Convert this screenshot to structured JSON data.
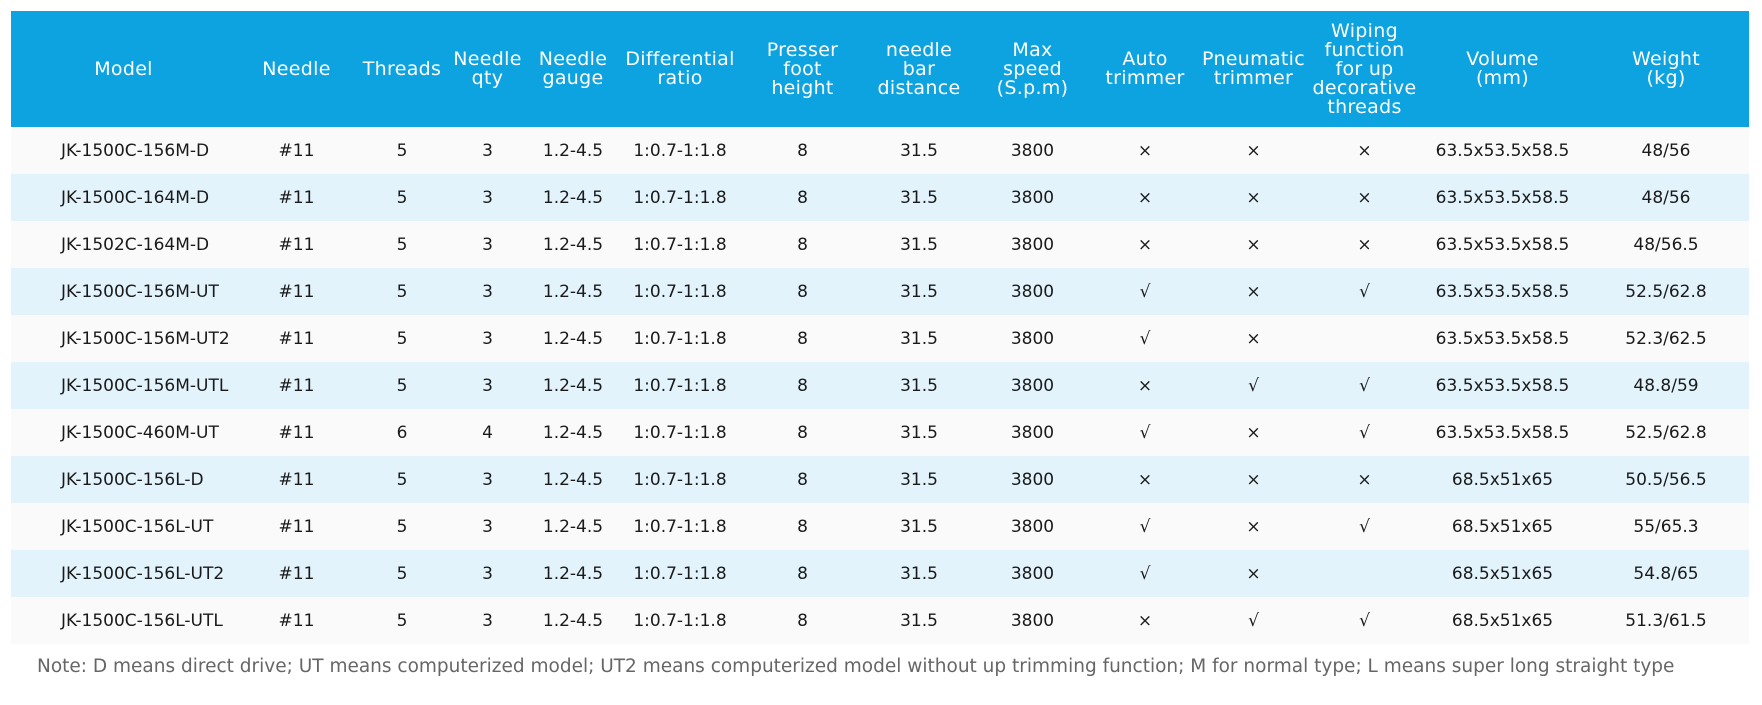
{
  "table": {
    "header": [
      "Model",
      "Needle",
      "Threads",
      "Needle\nqty",
      "Needle\ngauge",
      "Differential\nratio",
      "Presser\nfoot\nheight",
      "needle\nbar\ndistance",
      "Max\nspeed\n(S.p.m)",
      "Auto\ntrimmer",
      "Pneumatic\ntrimmer",
      "Wiping\nfunction\nfor up\ndecorative\nthreads",
      "Volume\n(mm)",
      "Weight\n(kg)"
    ],
    "rows": [
      [
        "JK-1500C-156M-D",
        "#11",
        "5",
        "3",
        "1.2-4.5",
        "1:0.7-1:1.8",
        "8",
        "31.5",
        "3800",
        "×",
        "×",
        "×",
        "63.5x53.5x58.5",
        "48/56"
      ],
      [
        "JK-1500C-164M-D",
        "#11",
        "5",
        "3",
        "1.2-4.5",
        "1:0.7-1:1.8",
        "8",
        "31.5",
        "3800",
        "×",
        "×",
        "×",
        "63.5x53.5x58.5",
        "48/56"
      ],
      [
        "JK-1502C-164M-D",
        "#11",
        "5",
        "3",
        "1.2-4.5",
        "1:0.7-1:1.8",
        "8",
        "31.5",
        "3800",
        "×",
        "×",
        "×",
        "63.5x53.5x58.5",
        "48/56.5"
      ],
      [
        "JK-1500C-156M-UT",
        "#11",
        "5",
        "3",
        "1.2-4.5",
        "1:0.7-1:1.8",
        "8",
        "31.5",
        "3800",
        "√",
        "×",
        "√",
        "63.5x53.5x58.5",
        "52.5/62.8"
      ],
      [
        "JK-1500C-156M-UT2",
        "#11",
        "5",
        "3",
        "1.2-4.5",
        "1:0.7-1:1.8",
        "8",
        "31.5",
        "3800",
        "√",
        "×",
        null,
        "63.5x53.5x58.5",
        "52.3/62.5"
      ],
      [
        "JK-1500C-156M-UTL",
        "#11",
        "5",
        "3",
        "1.2-4.5",
        "1:0.7-1:1.8",
        "8",
        "31.5",
        "3800",
        "×",
        "√",
        "√",
        "63.5x53.5x58.5",
        "48.8/59"
      ],
      [
        "JK-1500C-460M-UT",
        "#11",
        "6",
        "4",
        "1.2-4.5",
        "1:0.7-1:1.8",
        "8",
        "31.5",
        "3800",
        "√",
        "×",
        "√",
        "63.5x53.5x58.5",
        "52.5/62.8"
      ],
      [
        "JK-1500C-156L-D",
        "#11",
        "5",
        "3",
        "1.2-4.5",
        "1:0.7-1:1.8",
        "8",
        "31.5",
        "3800",
        "×",
        "×",
        "×",
        "68.5x51x65",
        "50.5/56.5"
      ],
      [
        "JK-1500C-156L-UT",
        "#11",
        "5",
        "3",
        "1.2-4.5",
        "1:0.7-1:1.8",
        "8",
        "31.5",
        "3800",
        "√",
        "×",
        "√",
        "68.5x51x65",
        "55/65.3"
      ],
      [
        "JK-1500C-156L-UT2",
        "#11",
        "5",
        "3",
        "1.2-4.5",
        "1:0.7-1:1.8",
        "8",
        "31.5",
        "3800",
        "√",
        "×",
        null,
        "68.5x51x65",
        "54.8/65"
      ],
      [
        "JK-1500C-156L-UTL",
        "#11",
        "5",
        "3",
        "1.2-4.5",
        "1:0.7-1:1.8",
        "8",
        "31.5",
        "3800",
        "×",
        "√",
        "√",
        "68.5x51x65",
        "51.3/61.5"
      ]
    ]
  },
  "note": "Note: D means direct drive; UT means computerized model; UT2 means computerized model without up trimming function; M for normal type; L means super long straight type"
}
